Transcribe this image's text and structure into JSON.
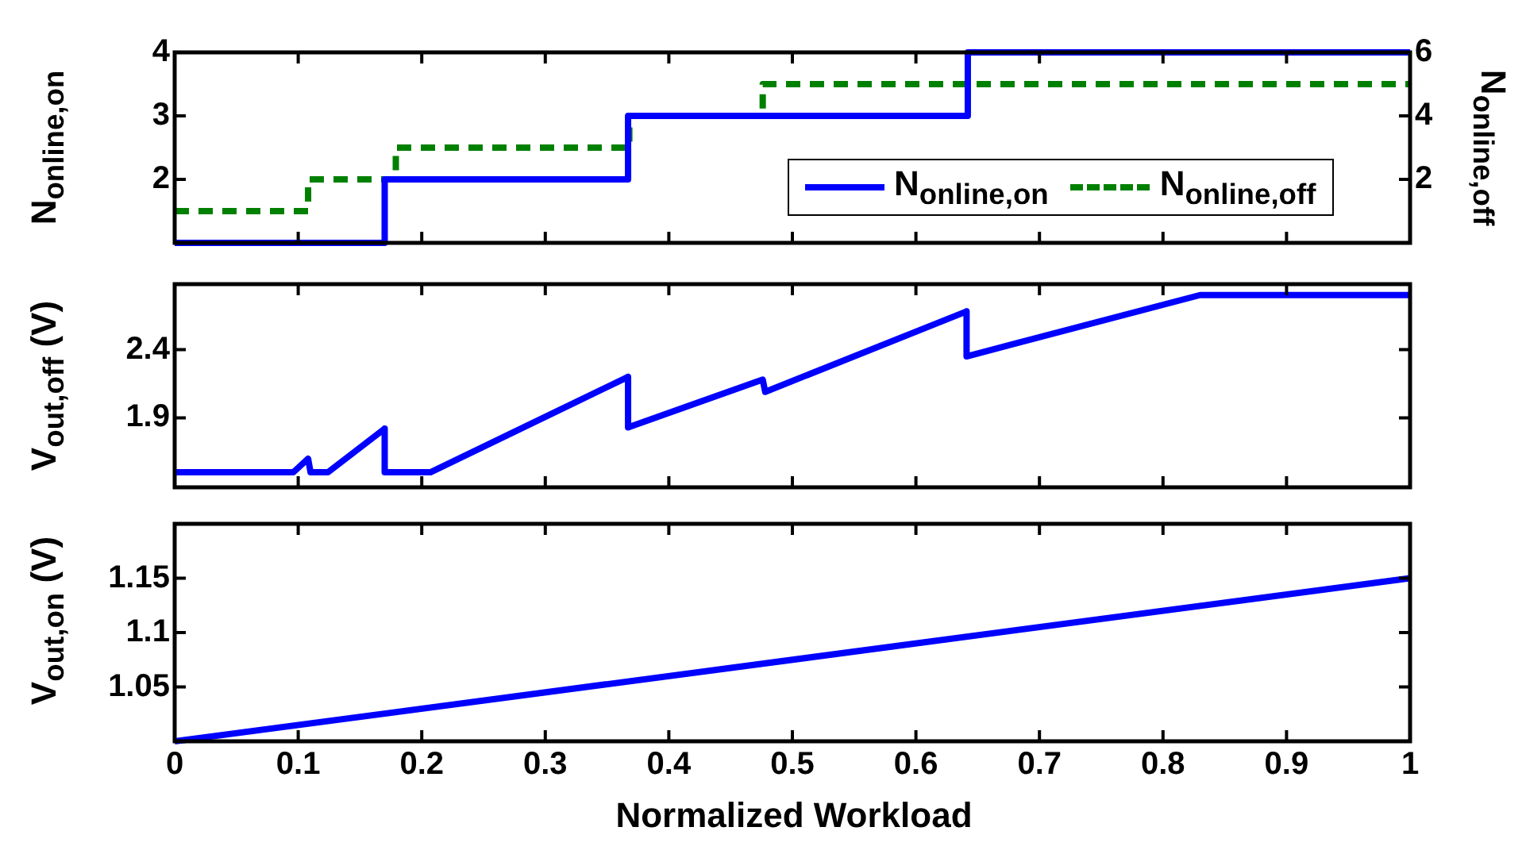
{
  "chart_data": [
    {
      "type": "step",
      "ylabel": "N$_{online,on}$",
      "y2label": "N$_{online,off}$",
      "xlim": [
        0,
        1
      ],
      "xticks": [
        0,
        0.1,
        0.2,
        0.3,
        0.4,
        0.5,
        0.6,
        0.7,
        0.8,
        0.9,
        1
      ],
      "ylim": [
        1,
        4
      ],
      "yticks": [
        2,
        3,
        4
      ],
      "y2lim": [
        0,
        6
      ],
      "y2ticks": [
        2,
        4,
        6
      ],
      "tick_labels": "y",
      "grid": false,
      "legend": "bottom right",
      "marker": "none",
      "series": [
        {
          "name": "N$_{online,on}$",
          "color": "#0000ff",
          "line_style": "solid",
          "x": [
            0,
            0.17,
            0.367,
            0.642,
            1
          ],
          "values": [
            1,
            2,
            3,
            4,
            4
          ]
        },
        {
          "name": "N$_{online,off}$",
          "color": "#008000",
          "line_style": "dashed",
          "axis": "y2",
          "x": [
            0,
            0.108,
            0.179,
            0.368,
            0.476,
            1
          ],
          "values": [
            1,
            2,
            3,
            4,
            5,
            5
          ]
        }
      ]
    },
    {
      "type": "line",
      "ylabel": "V$_{out,off}$ (V)",
      "xlim": [
        0,
        1
      ],
      "xticks": [
        0,
        0.1,
        0.2,
        0.3,
        0.4,
        0.5,
        0.6,
        0.7,
        0.8,
        0.9,
        1
      ],
      "ylim": [
        1.39,
        2.88
      ],
      "yticks": [
        1.9,
        2.4
      ],
      "tick_labels": "y",
      "grid": false,
      "marker": "none",
      "series": [
        {
          "color": "#0000ff",
          "x": [
            0,
            0.096,
            0.108,
            0.11,
            0.124,
            0.17,
            0.17,
            0.207,
            0.367,
            0.367,
            0.476,
            0.478,
            0.641,
            0.641,
            0.83,
            1
          ],
          "values": [
            1.5,
            1.5,
            1.6,
            1.5,
            1.5,
            1.82,
            1.5,
            1.5,
            2.2,
            1.83,
            2.18,
            2.09,
            2.68,
            2.35,
            2.8,
            2.8
          ]
        }
      ]
    },
    {
      "type": "line",
      "ylabel": "V$_{out,on}$ (V)",
      "xlabel": "Normalized Workload",
      "xlim": [
        0,
        1
      ],
      "xticks": [
        0,
        0.1,
        0.2,
        0.3,
        0.4,
        0.5,
        0.6,
        0.7,
        0.8,
        0.9,
        1
      ],
      "ylim": [
        1,
        1.2
      ],
      "yticks": [
        1.05,
        1.1,
        1.15
      ],
      "grid": false,
      "marker": "none",
      "series": [
        {
          "color": "#0000ff",
          "x": [
            0,
            1
          ],
          "values": [
            1,
            1.15
          ]
        }
      ]
    }
  ]
}
